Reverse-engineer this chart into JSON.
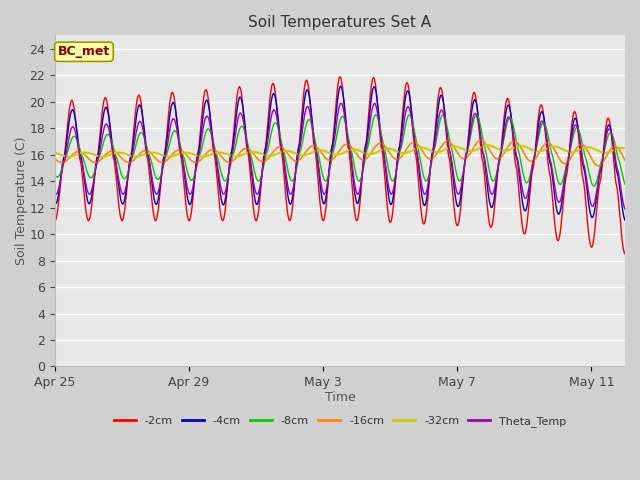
{
  "title": "Soil Temperatures Set A",
  "xlabel": "Time",
  "ylabel": "Soil Temperature (C)",
  "annotation": "BC_met",
  "ylim": [
    0,
    25
  ],
  "yticks": [
    0,
    2,
    4,
    6,
    8,
    10,
    12,
    14,
    16,
    18,
    20,
    22,
    24
  ],
  "xtick_labels": [
    "Apr 25",
    "Apr 29",
    "May 3",
    "May 7",
    "May 11"
  ],
  "xtick_positions": [
    0,
    4,
    8,
    12,
    16
  ],
  "series_colors": {
    "-2cm": "#ff0000",
    "-4cm": "#0000cc",
    "-8cm": "#00cc00",
    "-16cm": "#ff8800",
    "-32cm": "#cccc00",
    "Theta_Temp": "#aa00aa"
  },
  "bg_color": "#d0d0d0",
  "plot_bg_color": "#e8e8e8",
  "total_days": 17
}
